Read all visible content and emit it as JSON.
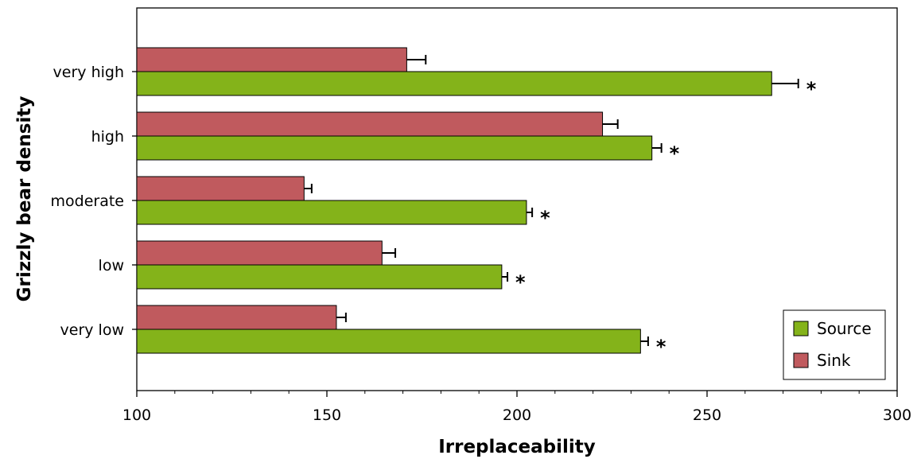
{
  "chart_data": {
    "type": "bar",
    "orientation": "horizontal",
    "categories": [
      "very high",
      "high",
      "moderate",
      "low",
      "very low"
    ],
    "series": [
      {
        "name": "Sink",
        "color": "#c05a5e",
        "values": [
          171,
          222.5,
          144,
          164.5,
          152.5
        ],
        "errors": [
          5,
          4,
          2,
          3.5,
          2.5
        ]
      },
      {
        "name": "Source",
        "color": "#84b31a",
        "values": [
          267,
          235.5,
          202.5,
          196,
          232.5
        ],
        "errors": [
          7,
          2.5,
          1.5,
          1.5,
          2
        ]
      }
    ],
    "annotations": [
      "*",
      "*",
      "*",
      "*",
      "*"
    ],
    "xlabel": "Irreplaceability",
    "ylabel": "Grizzly bear density",
    "xlim": [
      100,
      300
    ],
    "xticks": [
      100,
      150,
      200,
      250,
      300
    ],
    "grid": false,
    "legend": {
      "position": "bottom-right",
      "entries": [
        "Source",
        "Sink"
      ]
    }
  }
}
